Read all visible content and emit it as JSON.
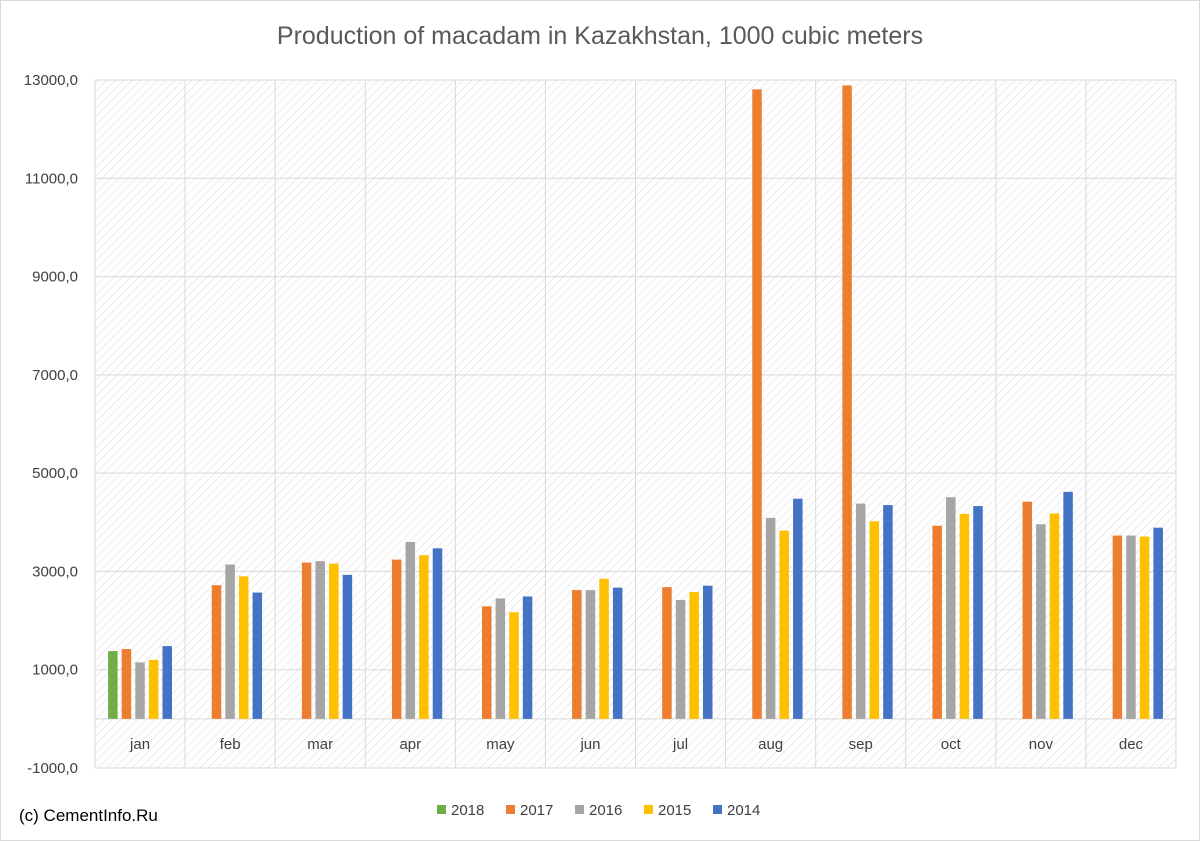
{
  "chart_data": {
    "type": "bar",
    "title": "Production of macadam in Kazakhstan, 1000 cubic meters",
    "categories": [
      "jan",
      "feb",
      "mar",
      "apr",
      "may",
      "jun",
      "jul",
      "aug",
      "sep",
      "oct",
      "nov",
      "dec"
    ],
    "ylim": [
      -1000,
      13000
    ],
    "yticks": [
      -1000,
      1000,
      3000,
      5000,
      7000,
      9000,
      11000,
      13000
    ],
    "ytick_labels": [
      "-1000,0",
      "1000,0",
      "3000,0",
      "5000,0",
      "7000,0",
      "9000,0",
      "11000,0",
      "13000,0"
    ],
    "grid": true,
    "legend_position": "bottom",
    "series": [
      {
        "name": "2018",
        "color": "#70AD47",
        "values": [
          1380,
          null,
          null,
          null,
          null,
          null,
          null,
          null,
          null,
          null,
          null,
          null
        ]
      },
      {
        "name": "2017",
        "color": "#ED7D31",
        "values": [
          1420,
          2720,
          3180,
          3240,
          2290,
          2620,
          2680,
          12810,
          12890,
          3930,
          4420,
          3730
        ]
      },
      {
        "name": "2016",
        "color": "#A5A5A5",
        "values": [
          1150,
          3140,
          3210,
          3600,
          2450,
          2620,
          2420,
          4090,
          4380,
          4510,
          3960,
          3730
        ]
      },
      {
        "name": "2015",
        "color": "#FFC000",
        "values": [
          1200,
          2900,
          3160,
          3330,
          2170,
          2850,
          2580,
          3830,
          4020,
          4170,
          4180,
          3710
        ]
      },
      {
        "name": "2014",
        "color": "#4472C4",
        "values": [
          1480,
          2570,
          2930,
          3470,
          2490,
          2670,
          2710,
          4480,
          4350,
          4330,
          4620,
          3890
        ]
      }
    ]
  },
  "source_note": "(c) CementInfo.Ru"
}
